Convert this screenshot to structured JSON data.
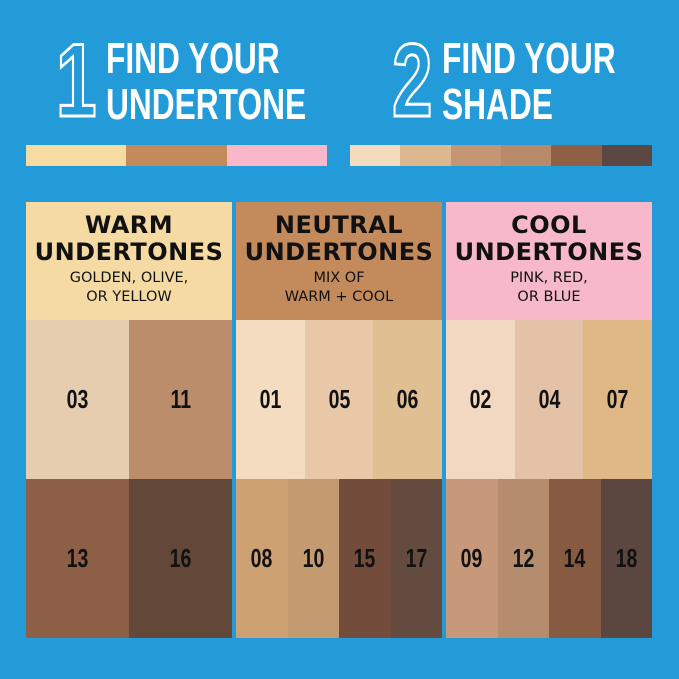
{
  "background": "#229bd8",
  "steps": [
    {
      "number": "1",
      "line1": "FIND YOUR",
      "line2": "UNDERTONE",
      "strip": [
        "#f6dca3",
        "#c38b5b",
        "#f8b8c9"
      ]
    },
    {
      "number": "2",
      "line1": "FIND YOUR",
      "line2": "SHADE",
      "strip": [
        "#f3dbbd",
        "#dcb78f",
        "#c59673",
        "#b78a6a",
        "#8f6046",
        "#5c4742"
      ]
    }
  ],
  "columns": [
    {
      "title1": "WARM",
      "title2": "UNDERTONES",
      "sub1": "GOLDEN, OLIVE,",
      "sub2": "OR YELLOW",
      "color": "#f5dba3",
      "row1": [
        {
          "shade": "03",
          "color": "#e7cdb0"
        },
        {
          "shade": "11",
          "color": "#bb8d6a"
        }
      ],
      "row2": [
        {
          "shade": "13",
          "color": "#8e5f47"
        },
        {
          "shade": "16",
          "color": "#634739"
        }
      ]
    },
    {
      "title1": "NEUTRAL",
      "title2": "UNDERTONES",
      "sub1": "MIX OF",
      "sub2": "WARM + COOL",
      "color": "#c38b5b",
      "row1": [
        {
          "shade": "01",
          "color": "#f3dcc0"
        },
        {
          "shade": "05",
          "color": "#e9c8a7"
        },
        {
          "shade": "06",
          "color": "#e0bf93"
        }
      ],
      "row2": [
        {
          "shade": "08",
          "color": "#cea173"
        },
        {
          "shade": "10",
          "color": "#c49a70"
        },
        {
          "shade": "15",
          "color": "#744c3b"
        },
        {
          "shade": "17",
          "color": "#644b3f"
        }
      ]
    },
    {
      "title1": "COOL",
      "title2": "UNDERTONES",
      "sub1": "PINK, RED,",
      "sub2": "OR BLUE",
      "color": "#f7b8c9",
      "row1": [
        {
          "shade": "02",
          "color": "#f2d8c1"
        },
        {
          "shade": "04",
          "color": "#e3c2a8"
        },
        {
          "shade": "07",
          "color": "#dfb886"
        }
      ],
      "row2": [
        {
          "shade": "09",
          "color": "#c7987a"
        },
        {
          "shade": "12",
          "color": "#b58d6e"
        },
        {
          "shade": "14",
          "color": "#875b42"
        },
        {
          "shade": "18",
          "color": "#5b4640"
        }
      ]
    }
  ]
}
